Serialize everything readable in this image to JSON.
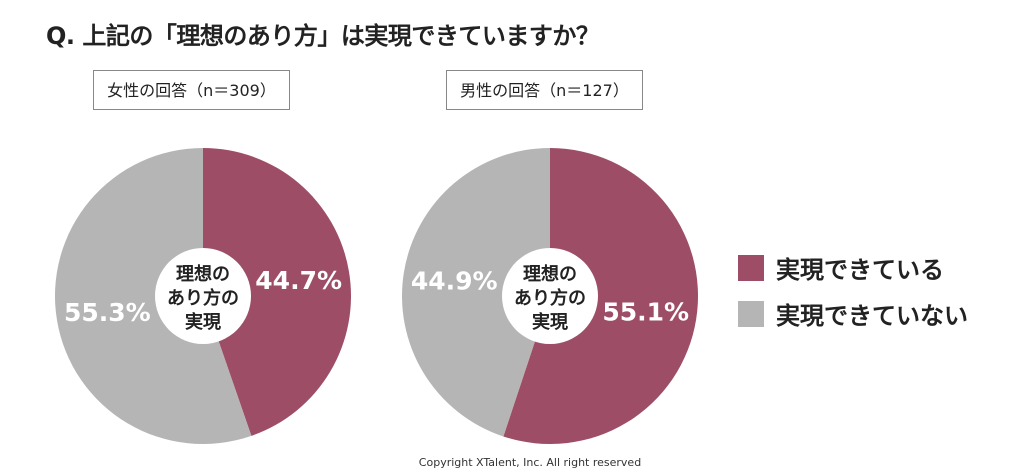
{
  "title": "Q. 上記の「理想のあり方」は実現できていますか？",
  "copyright": "Copyright XTalent, Inc. All right reserved",
  "chart_data": {
    "type": "pie",
    "donut": true,
    "center_label": [
      "理想の",
      "あり方の",
      "実現"
    ],
    "legend": [
      {
        "label": "実現できている",
        "color": "#9d4e66"
      },
      {
        "label": "実現できていない",
        "color": "#b5b5b5"
      }
    ],
    "legend_position": "right",
    "charts": [
      {
        "title": "女性の回答（n＝309）",
        "values": [
          44.7,
          55.3
        ],
        "labels": [
          "44.7%",
          "55.3%"
        ]
      },
      {
        "title": "男性の回答（n＝127）",
        "values": [
          55.1,
          44.9
        ],
        "labels": [
          "55.1%",
          "44.9%"
        ]
      }
    ]
  }
}
